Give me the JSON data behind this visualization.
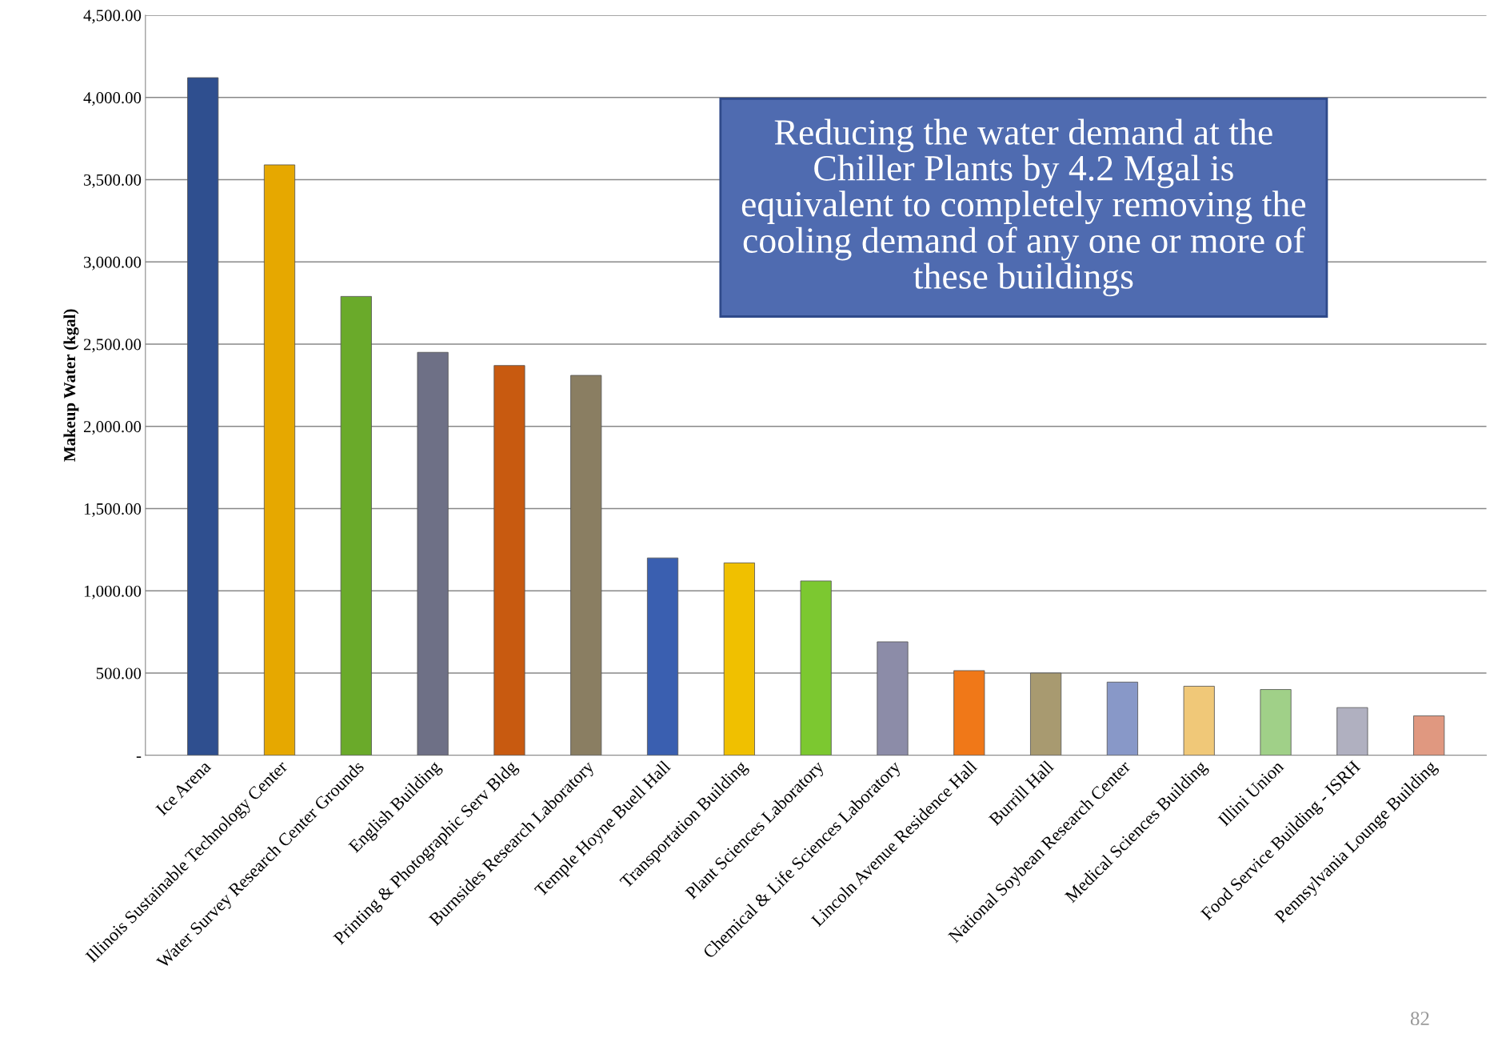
{
  "chart_data": {
    "type": "bar",
    "ylabel": "Makeup Water (kgal)",
    "categories": [
      "Ice Arena",
      "Illinois Sustainable Technology Center",
      "Water Survey Research Center Grounds",
      "English Building",
      "Printing & Photographic Serv Bldg",
      "Burnsides Research Laboratory",
      "Temple Hoyne Buell Hall",
      "Transportation Building",
      "Plant Sciences Laboratory",
      "Chemical & Life Sciences Laboratory",
      "Lincoln Avenue Residence Hall",
      "Burrill Hall",
      "National Soybean Research Center",
      "Medical Sciences Building",
      "Illini Union",
      "Food Service Building - ISRH",
      "Pennsylvania Lounge Building"
    ],
    "values": [
      4120,
      3590,
      2790,
      2450,
      2370,
      2310,
      1200,
      1170,
      1060,
      690,
      515,
      500,
      445,
      420,
      400,
      290,
      240
    ],
    "colors": [
      "#2f4f8f",
      "#e6a800",
      "#6aaa2a",
      "#6e7086",
      "#c85a10",
      "#8a7e62",
      "#3a5fb0",
      "#f0c000",
      "#7cc830",
      "#8c8ca8",
      "#f07818",
      "#a89a70",
      "#8898c8",
      "#f0c878",
      "#a0d088",
      "#b0b0c0",
      "#e09880"
    ],
    "ylim": [
      0,
      4500
    ],
    "yticks": [
      {
        "value": 0,
        "label": "-"
      },
      {
        "value": 500,
        "label": "500.00"
      },
      {
        "value": 1000,
        "label": "1,000.00"
      },
      {
        "value": 1500,
        "label": "1,500.00"
      },
      {
        "value": 2000,
        "label": "2,000.00"
      },
      {
        "value": 2500,
        "label": "2,500.00"
      },
      {
        "value": 3000,
        "label": "3,000.00"
      },
      {
        "value": 3500,
        "label": "3,500.00"
      },
      {
        "value": 4000,
        "label": "4,000.00"
      },
      {
        "value": 4500,
        "label": "4,500.00"
      }
    ],
    "grid": "y",
    "annotations": [
      "Reducing the water demand at the\nChiller Plants by 4.2 Mgal is\nequivalent to completely removing the\ncooling demand of any one or more of\nthese buildings",
      "82"
    ]
  }
}
